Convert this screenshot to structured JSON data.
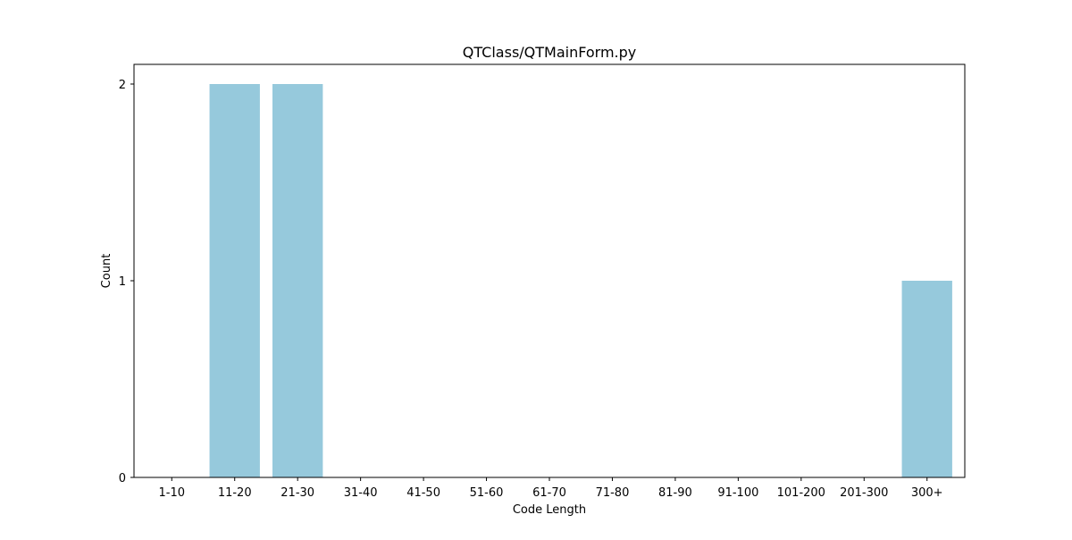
{
  "chart_data": {
    "type": "bar",
    "title": "QTClass/QTMainForm.py",
    "xlabel": "Code Length",
    "ylabel": "Count",
    "categories": [
      "1-10",
      "11-20",
      "21-30",
      "31-40",
      "41-50",
      "51-60",
      "61-70",
      "71-80",
      "81-90",
      "91-100",
      "101-200",
      "201-300",
      "300+"
    ],
    "values": [
      0,
      2,
      2,
      0,
      0,
      0,
      0,
      0,
      0,
      0,
      0,
      0,
      1
    ],
    "ylim": [
      0,
      2.1
    ],
    "yticks": [
      "0",
      "1",
      "2"
    ],
    "grid": false,
    "legend": "none",
    "bar_color": "#96c9dc"
  }
}
